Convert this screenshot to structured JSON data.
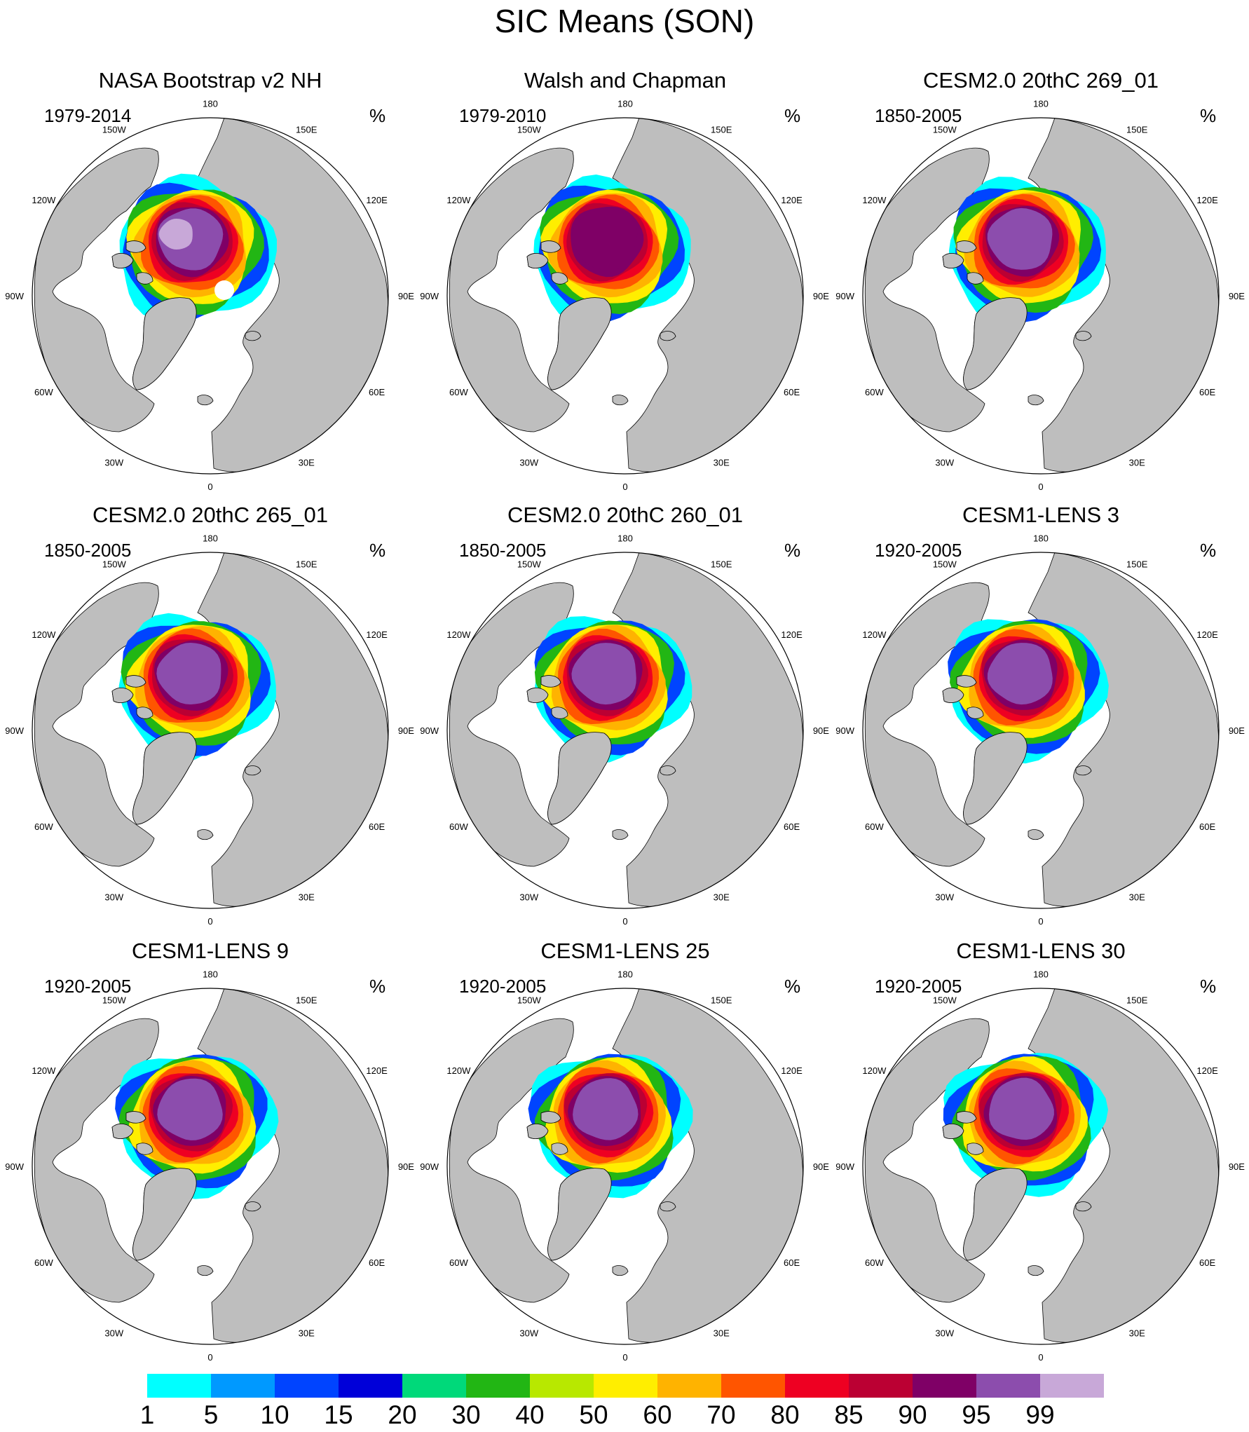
{
  "title": "SIC Means (SON)",
  "panels": [
    {
      "name": "NASA Bootstrap v2 NH",
      "period": "1979-2014",
      "units": "%"
    },
    {
      "name": "Walsh and Chapman",
      "period": "1979-2010",
      "units": "%"
    },
    {
      "name": "CESM2.0 20thC 269_01",
      "period": "1850-2005",
      "units": "%"
    },
    {
      "name": "CESM2.0 20thC 265_01",
      "period": "1850-2005",
      "units": "%"
    },
    {
      "name": "CESM2.0 20thC 260_01",
      "period": "1850-2005",
      "units": "%"
    },
    {
      "name": "CESM1-LENS 3",
      "period": "1920-2005",
      "units": "%"
    },
    {
      "name": "CESM1-LENS 9",
      "period": "1920-2005",
      "units": "%"
    },
    {
      "name": "CESM1-LENS 25",
      "period": "1920-2005",
      "units": "%"
    },
    {
      "name": "CESM1-LENS 30",
      "period": "1920-2005",
      "units": "%"
    }
  ],
  "longitude_labels": {
    "top": "180",
    "bottom": "0",
    "upper_left": "150W",
    "upper_right": "150E",
    "mid_upper_left": "120W",
    "mid_upper_right": "120E",
    "left": "90W",
    "right": "90E",
    "mid_lower_left": "60W",
    "mid_lower_right": "60E",
    "lower_left": "30W",
    "lower_right": "30E"
  },
  "colorbar": {
    "labels": [
      "1",
      "5",
      "10",
      "15",
      "20",
      "30",
      "40",
      "50",
      "60",
      "70",
      "80",
      "85",
      "90",
      "95",
      "99"
    ],
    "colors": [
      "#00ffff",
      "#0099ff",
      "#0044ff",
      "#0000d9",
      "#00d97a",
      "#22b614",
      "#b8e800",
      "#ffee00",
      "#ffb300",
      "#ff5500",
      "#ee0022",
      "#bb0033",
      "#7f0066",
      "#8c4dad",
      "#c8a8d8"
    ]
  },
  "colors": {
    "land": "#bebebe",
    "ocean": "#ffffff"
  }
}
